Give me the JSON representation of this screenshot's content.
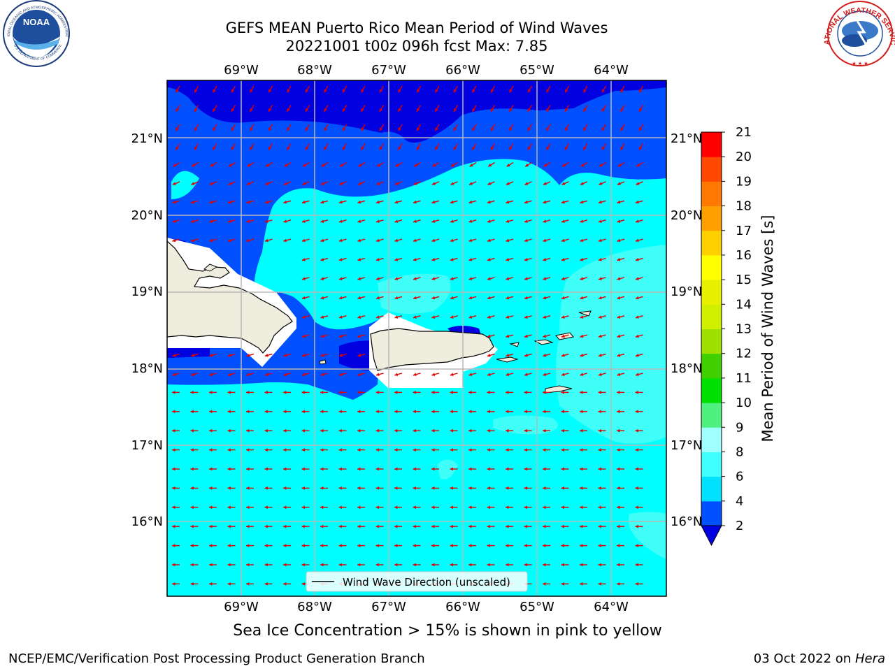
{
  "title": {
    "line1": "GEFS MEAN Puerto Rico Mean Period of Wind Waves",
    "line2": "20221001 t00z 096h fcst   Max: 7.85"
  },
  "map": {
    "lon_labels": [
      "69°W",
      "68°W",
      "67°W",
      "66°W",
      "65°W",
      "64°W"
    ],
    "lat_labels": [
      "21°N",
      "20°N",
      "19°N",
      "18°N",
      "17°N",
      "16°N"
    ],
    "legend_label": "Wind Wave Direction (unscaled)",
    "arrow_color": "#e00000",
    "land_color": "#efeddd"
  },
  "colorbar": {
    "label": "Mean Period of Wind Waves [s]",
    "ticks": [
      "2",
      "4",
      "6",
      "8",
      "9",
      "10",
      "11",
      "12",
      "13",
      "14",
      "15",
      "16",
      "17",
      "18",
      "19",
      "20",
      "21"
    ],
    "colors": [
      "#0050ff",
      "#00e0ff",
      "#40ffff",
      "#a0ffff",
      "#50f080",
      "#00e000",
      "#40d000",
      "#a0e000",
      "#d0f000",
      "#e8f000",
      "#ffff00",
      "#ffd000",
      "#ffa000",
      "#ff7800",
      "#ff4800",
      "#ff0000"
    ],
    "under_color": "#0000e0"
  },
  "bottom_note": "Sea Ice Concentration > 15% is shown in pink to yellow",
  "footer": {
    "left": "NCEP/EMC/Verification Post Processing Product Generation Branch",
    "right_date": "03 Oct 2022 on ",
    "right_host": "Hera"
  },
  "logos": {
    "noaa_text": "NOAA",
    "noaa_ring": "NATIONAL OCEANIC AND ATMOSPHERIC ADMINISTRATION",
    "noaa_ring_bottom": "U.S. DEPARTMENT OF COMMERCE",
    "nws_ring": "NATIONAL WEATHER SERVICE"
  }
}
